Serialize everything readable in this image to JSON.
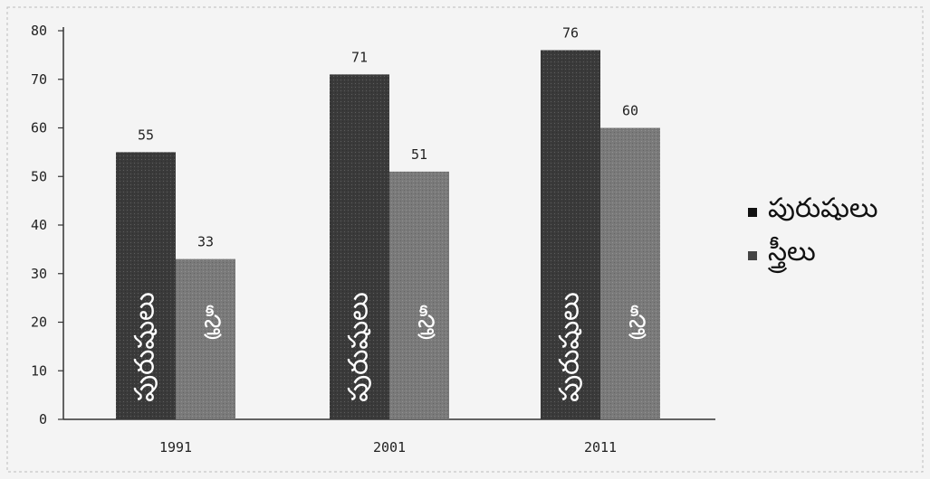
{
  "chart_data": {
    "type": "bar",
    "categories": [
      "1991",
      "2001",
      "2011"
    ],
    "series": [
      {
        "name": "పురుషులు",
        "values": [
          55,
          71,
          76
        ],
        "color": "#3a3a3a",
        "bar_label": "పురుషులు"
      },
      {
        "name": "స్త్రీలు",
        "values": [
          33,
          51,
          60
        ],
        "color": "#7a7a7a",
        "bar_label": "స్త్రీ"
      }
    ],
    "yticks": [
      "0",
      "10",
      "20",
      "30",
      "40",
      "50",
      "60",
      "70",
      "80"
    ],
    "ylim": [
      0,
      80
    ],
    "legend": "right",
    "grid": false
  }
}
